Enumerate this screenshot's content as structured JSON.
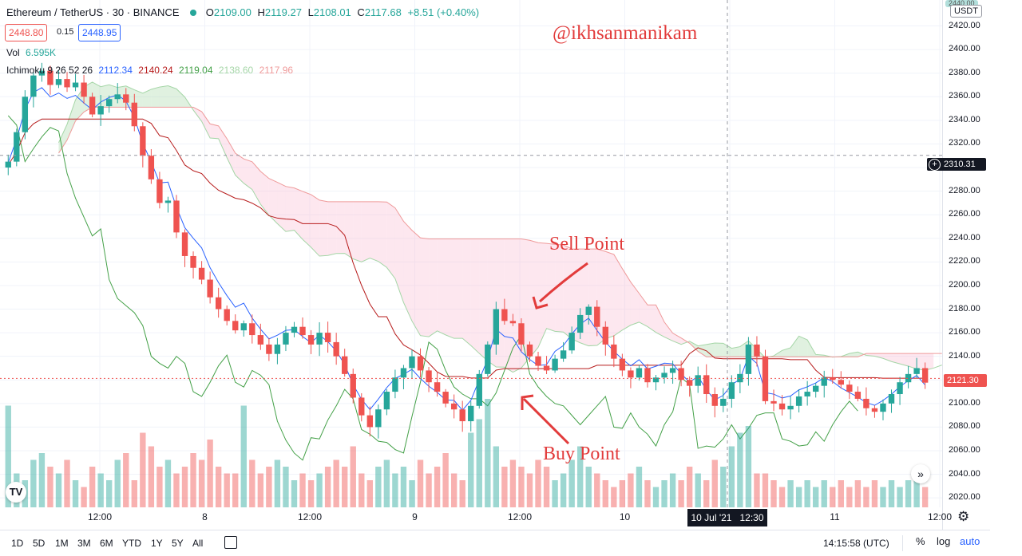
{
  "header": {
    "symbol": "Ethereum / TetherUS · 30 · BINANCE",
    "ohlc": {
      "o_label": "O",
      "o": "2109.00",
      "h_label": "H",
      "h": "2119.27",
      "l_label": "L",
      "l": "2108.01",
      "c_label": "C",
      "c": "2117.68",
      "change": "+8.51 (+0.40%)"
    },
    "sell_box": "2448.80",
    "spread": "0.15",
    "buy_box": "2448.95"
  },
  "vol": {
    "label": "Vol",
    "value": "6.595K"
  },
  "ichimoku": {
    "label": "Ichimoku 9 26 52 26",
    "conv": "2112.34",
    "base": "2140.24",
    "span_a": "2119.04",
    "lag": "2138.60",
    "span_b": "2117.96"
  },
  "watermark": "@ikhsanmanikam",
  "annotations": {
    "sell": "Sell Point",
    "buy": "Buy Point"
  },
  "currency": "USDT",
  "crosshair_price": "2310.31",
  "crosshair_time": "10 Jul '21   12:30",
  "last_price": "2121.30",
  "top_price_partial": "2440.00",
  "time_display": "14:15:58 (UTC)",
  "timeframes": [
    "1D",
    "5D",
    "1M",
    "3M",
    "6M",
    "YTD",
    "1Y",
    "5Y",
    "All"
  ],
  "right_controls": {
    "percent": "%",
    "log": "log",
    "auto": "auto"
  },
  "colors": {
    "up": "#26a69a",
    "down": "#ef5350",
    "conv": "#2962ff",
    "base": "#b71c1c",
    "lag": "#43a047",
    "cloud_up": "#a5d6a7",
    "cloud_down": "#f8bbd0",
    "annotation": "#e23b3b"
  },
  "icons": {
    "scroll": "chevron-right-icon",
    "settings": "gear-icon",
    "logo": "tv-logo-icon",
    "crosshair": "plus-circle-icon",
    "compare": "calendar-icon"
  },
  "chart_data": {
    "type": "candlestick",
    "title": "Ethereum / TetherUS · 30 · BINANCE",
    "y_ticks": [
      "2420.00",
      "2400.00",
      "2380.00",
      "2360.00",
      "2340.00",
      "2320.00",
      "2300.00",
      "2280.00",
      "2260.00",
      "2240.00",
      "2220.00",
      "2200.00",
      "2180.00",
      "2160.00",
      "2140.00",
      "2120.00",
      "2100.00",
      "2080.00",
      "2060.00",
      "2040.00",
      "2020.00"
    ],
    "x_ticks": [
      "12:00",
      "8",
      "12:00",
      "9",
      "12:00",
      "10",
      "12:00",
      "11",
      "12:00"
    ],
    "ylim": [
      2012,
      2442
    ],
    "close_path": [
      2305,
      2330,
      2360,
      2378,
      2382,
      2370,
      2375,
      2368,
      2372,
      2360,
      2345,
      2352,
      2358,
      2362,
      2355,
      2335,
      2310,
      2290,
      2270,
      2272,
      2245,
      2225,
      2215,
      2205,
      2190,
      2180,
      2170,
      2162,
      2168,
      2158,
      2150,
      2142,
      2150,
      2160,
      2165,
      2158,
      2150,
      2160,
      2152,
      2140,
      2125,
      2105,
      2090,
      2080,
      2095,
      2110,
      2122,
      2130,
      2140,
      2128,
      2118,
      2110,
      2100,
      2095,
      2085,
      2098,
      2125,
      2150,
      2180,
      2170,
      2168,
      2150,
      2140,
      2132,
      2128,
      2138,
      2145,
      2160,
      2175,
      2182,
      2165,
      2150,
      2138,
      2128,
      2122,
      2130,
      2118,
      2122,
      2126,
      2130,
      2120,
      2115,
      2124,
      2108,
      2098,
      2104,
      2118,
      2125,
      2150,
      2140,
      2102,
      2100,
      2095,
      2098,
      2106,
      2110,
      2115,
      2122,
      2120,
      2116,
      2110,
      2104,
      2096,
      2093,
      2100,
      2108,
      2118,
      2125,
      2130,
      2117.68
    ],
    "volume_profile": [
      0.75,
      0.25,
      0.2,
      0.35,
      0.4,
      0.3,
      0.25,
      0.35,
      0.2,
      0.15,
      0.3,
      0.25,
      0.2,
      0.35,
      0.4,
      0.2,
      0.55,
      0.45,
      0.3,
      0.35,
      0.25,
      0.3,
      0.4,
      0.35,
      0.5,
      0.3,
      0.25,
      0.25,
      0.75,
      0.35,
      0.25,
      0.3,
      0.35,
      0.3,
      0.2,
      0.25,
      0.2,
      0.25,
      0.3,
      0.35,
      0.3,
      0.45,
      0.25,
      0.2,
      0.3,
      0.35,
      0.25,
      0.3,
      0.2,
      0.35,
      0.25,
      0.3,
      0.4,
      0.25,
      0.2,
      0.55,
      0.65,
      0.8,
      0.45,
      0.3,
      0.35,
      0.3,
      0.25,
      0.35,
      0.3,
      0.2,
      0.25,
      0.35,
      0.45,
      0.3,
      0.25,
      0.2,
      0.15,
      0.2,
      0.25,
      0.3,
      0.2,
      0.15,
      0.2,
      0.25,
      0.2,
      0.3,
      0.25,
      0.2,
      0.35,
      0.3,
      0.45,
      0.55,
      0.6,
      0.25,
      0.25,
      0.2,
      0.15,
      0.2,
      0.15,
      0.2,
      0.15,
      0.2,
      0.15,
      0.2,
      0.15,
      0.2,
      0.15,
      0.2,
      0.15,
      0.2,
      0.15,
      0.2,
      0.25,
      0.15
    ]
  }
}
